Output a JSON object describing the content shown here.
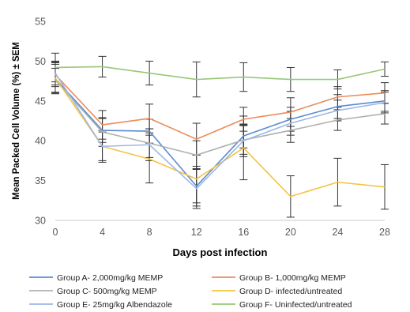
{
  "chart_data": {
    "type": "line",
    "title": "",
    "xlabel": "Days post infection",
    "ylabel": "Mean Packed Cell Volume (%) ± SEM",
    "x": [
      0,
      4,
      8,
      12,
      16,
      20,
      24,
      28
    ],
    "x_tick_labels": [
      "0",
      "4",
      "8",
      "12",
      "16",
      "20",
      "24",
      "28"
    ],
    "ylim": [
      30,
      55
    ],
    "y_tick_labels": [
      "30",
      "35",
      "40",
      "45",
      "50",
      "55"
    ],
    "grid": false,
    "legend_position": "bottom",
    "series": [
      {
        "name": "Group A- 2,000mg/kg MEMP",
        "color": "#5b8bd0",
        "values": [
          47.8,
          41.3,
          41.2,
          34.3,
          40.6,
          42.7,
          44.3,
          45.0
        ],
        "errors": [
          1.8,
          1.5,
          1.5,
          2.5,
          1.5,
          1.5,
          1.5,
          1.3
        ]
      },
      {
        "name": "Group B- 1,000mg/kg MEMP",
        "color": "#ec8b5a",
        "values": [
          48.3,
          42.0,
          42.8,
          40.2,
          42.7,
          43.6,
          45.5,
          46.0
        ],
        "errors": [
          1.5,
          1.8,
          1.8,
          2.0,
          1.5,
          1.8,
          1.3,
          1.3
        ]
      },
      {
        "name": "Group C- 500mg/kg MEMP",
        "color": "#b0b0b0",
        "values": [
          47.6,
          41.1,
          39.7,
          38.2,
          40.1,
          41.3,
          42.6,
          43.4
        ],
        "errors": [
          1.5,
          1.8,
          1.8,
          1.8,
          1.8,
          1.5,
          1.3,
          1.3
        ]
      },
      {
        "name": "Group D- infected/untreated",
        "color": "#f5c342",
        "values": [
          47.9,
          39.3,
          37.7,
          35.2,
          39.1,
          33.0,
          34.8,
          34.2
        ],
        "errors": [
          2.0,
          2.0,
          3.0,
          3.0,
          4.0,
          2.6,
          3.0,
          2.8
        ]
      },
      {
        "name": "Group E- 25mg/kg Albendazole",
        "color": "#9db8e6",
        "values": [
          48.5,
          39.3,
          39.5,
          34.0,
          40.0,
          42.2,
          43.8,
          44.8
        ],
        "errors": [
          1.5,
          1.8,
          2.0,
          2.5,
          2.0,
          1.5,
          1.3,
          1.3
        ]
      },
      {
        "name": "Group F- Uninfected/untreated",
        "color": "#99c77a",
        "values": [
          49.2,
          49.3,
          48.5,
          47.7,
          48.0,
          47.7,
          47.7,
          49.0
        ],
        "errors": [
          1.8,
          1.3,
          1.5,
          2.2,
          1.8,
          1.5,
          1.2,
          0.9
        ]
      }
    ]
  }
}
